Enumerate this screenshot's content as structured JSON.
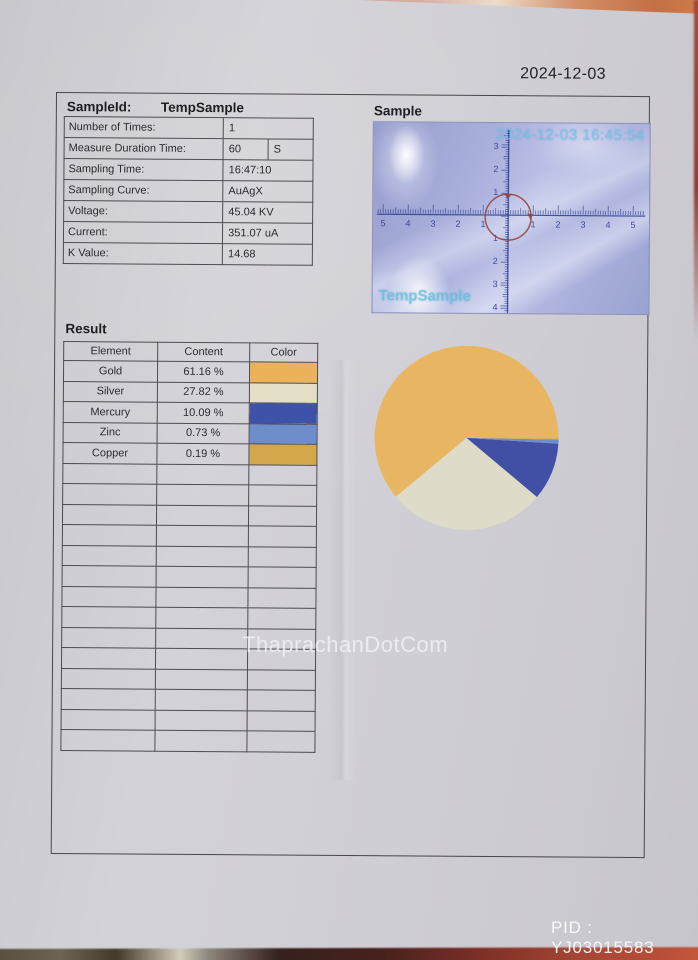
{
  "report": {
    "date": "2024-12-03",
    "pid": "PID : YJ03015583",
    "overlay_watermark": "ThaprachanDotCom",
    "paper_color": "#cfced4",
    "line_color": "#4c4c52"
  },
  "sample_info": {
    "id_label": "SampleId:",
    "id_value": "TempSample",
    "rows": [
      {
        "label": "Number of Times:",
        "value": "1",
        "unit": ""
      },
      {
        "label": "Measure Duration Time:",
        "value": "60",
        "unit": "S"
      },
      {
        "label": "Sampling Time:",
        "value": "16:47:10",
        "unit": ""
      },
      {
        "label": "Sampling Curve:",
        "value": "AuAgX",
        "unit": ""
      },
      {
        "label": "Voltage:",
        "value": "45.04 KV",
        "unit": ""
      },
      {
        "label": "Current:",
        "value": "351.07 uA",
        "unit": ""
      },
      {
        "label": "K Value:",
        "value": "14.68",
        "unit": ""
      }
    ]
  },
  "sample_image": {
    "title": "Sample",
    "timestamp": "2024-12-03 16:45:54",
    "label": "TempSample",
    "h_axis_labels": [
      5,
      4,
      3,
      2,
      1,
      1,
      2,
      3,
      4,
      5
    ],
    "v_axis_labels_up": [
      1,
      2,
      3
    ],
    "v_axis_labels_down": [
      1,
      2,
      3,
      4
    ],
    "ruler_color": "#2c3d94",
    "circle_color": "#97423a"
  },
  "result": {
    "title": "Result",
    "headers": [
      "Element",
      "Content",
      "Color"
    ],
    "rows": [
      {
        "element": "Gold",
        "content": "61.16 %",
        "color": "#ecb259"
      },
      {
        "element": "Silver",
        "content": "27.82 %",
        "color": "#e2dfc6"
      },
      {
        "element": "Mercury",
        "content": "10.09 %",
        "color": "#3d52a8"
      },
      {
        "element": "Zinc",
        "content": "0.73 %",
        "color": "#6e8dcb"
      },
      {
        "element": "Copper",
        "content": "0.19 %",
        "color": "#d5a74c"
      }
    ],
    "empty_row_count": 14
  },
  "chart_data": {
    "type": "pie",
    "labels": [
      "Gold",
      "Silver",
      "Mercury",
      "Zinc",
      "Copper"
    ],
    "values": [
      61.16,
      27.82,
      10.09,
      0.73,
      0.19
    ],
    "colors": [
      "#e8b663",
      "#dedcc8",
      "#4150a5",
      "#6e8dcb",
      "#d5a74c"
    ],
    "start_angle_deg": 0,
    "direction": "counterclockwise",
    "legend_position": "none",
    "title": ""
  }
}
